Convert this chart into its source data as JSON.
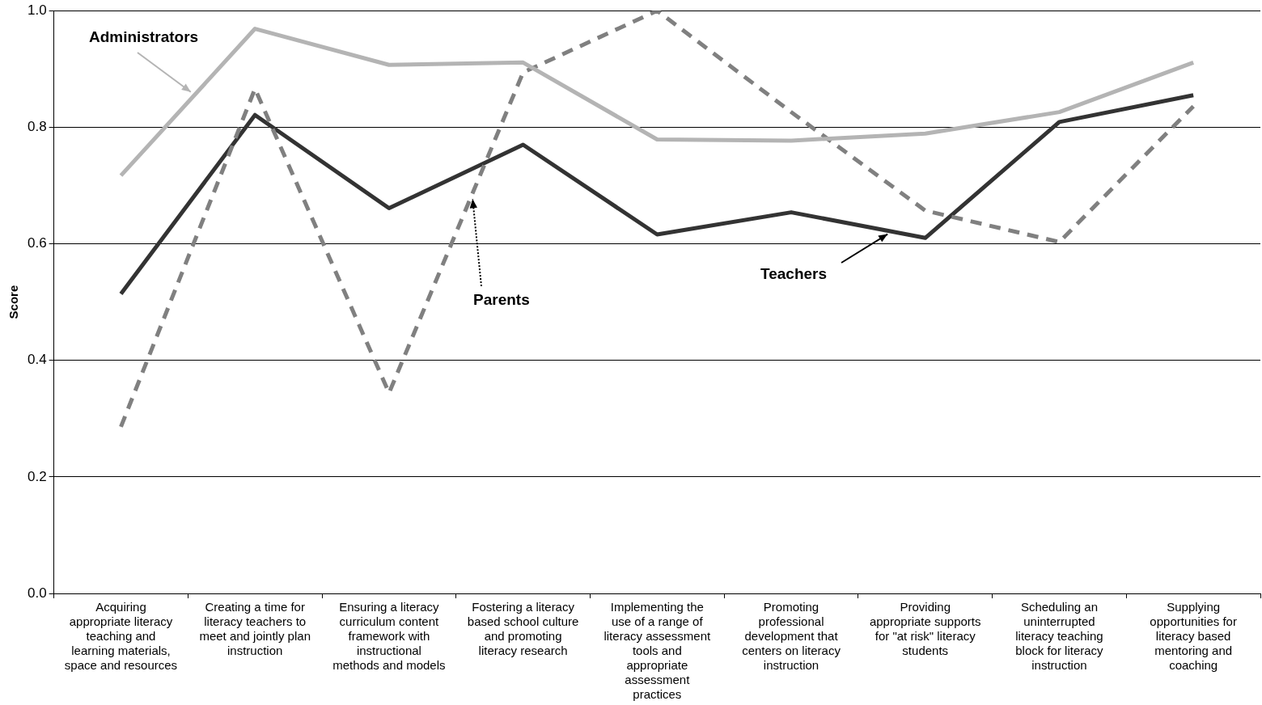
{
  "chart_data": {
    "type": "line",
    "ylabel": "Score",
    "categories": [
      "Acquiring appropriate literacy teaching and learning materials, space and resources",
      "Creating a time for literacy teachers to meet and jointly plan instruction",
      "Ensuring a literacy curriculum content framework with instructional methods and models",
      "Fostering a literacy based school culture and promoting literacy research",
      "Implementing the use of a range of literacy assessment tools and appropriate assessment practices",
      "Promoting professional development that centers on literacy instruction",
      "Providing appropriate supports for \"at risk\" literacy students",
      "Scheduling an uninterrupted literacy teaching block for literacy instruction",
      "Supplying opportunities for literacy based mentoring and coaching"
    ],
    "series": [
      {
        "name": "Administrators",
        "color": "#b4b4b4",
        "line_style": "solid",
        "values": [
          0.717,
          0.969,
          0.907,
          0.911,
          0.779,
          0.777,
          0.789,
          0.826,
          0.911
        ]
      },
      {
        "name": "Parents",
        "color": "#808080",
        "line_style": "dashed",
        "values": [
          0.286,
          0.866,
          0.344,
          0.894,
          1.0,
          0.826,
          0.657,
          0.603,
          0.836
        ]
      },
      {
        "name": "Teachers",
        "color": "#333333",
        "line_style": "solid",
        "values": [
          0.514,
          0.821,
          0.661,
          0.77,
          0.616,
          0.654,
          0.61,
          0.809,
          0.855
        ]
      }
    ],
    "ylim": [
      0,
      1
    ],
    "yticks": [
      {
        "value": 0,
        "label": "0.0"
      },
      {
        "value": 0.2,
        "label": "0.2"
      },
      {
        "value": 0.4,
        "label": "0.4"
      },
      {
        "value": 0.6,
        "label": "0.6"
      },
      {
        "value": 0.8,
        "label": "0.8"
      },
      {
        "value": 1,
        "label": "1.0"
      }
    ],
    "grid": "y",
    "legend": false,
    "marker": "none"
  }
}
